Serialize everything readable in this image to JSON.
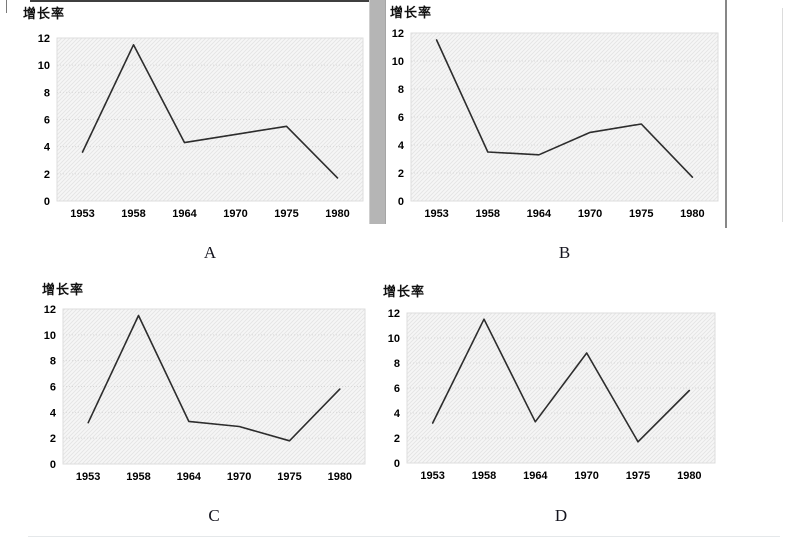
{
  "page": {
    "background": "#ffffff"
  },
  "colors": {
    "series_line": "#2d2d2d",
    "plot_fill_base": "#f6f6f6",
    "plot_hatch": "#e3e3e3",
    "plot_border": "#dedede",
    "gridline": "#d9d9d9",
    "tick_text": "#000000",
    "scrollbar_gray": "#b5b5b5"
  },
  "chart_data": [
    {
      "id": "A",
      "type": "line",
      "title": "增长率",
      "panel_label": "A",
      "categories": [
        "1953",
        "1958",
        "1964",
        "1970",
        "1975",
        "1980"
      ],
      "values": [
        3.6,
        11.5,
        4.3,
        4.9,
        5.5,
        1.7
      ],
      "yticks": [
        0,
        2,
        4,
        6,
        8,
        10,
        12
      ],
      "ylim": [
        0,
        12
      ],
      "xlabel": "",
      "ylabel": "",
      "legend": "none",
      "grid": "faint horizontal",
      "plot_fill": "diagonal-hatch"
    },
    {
      "id": "B",
      "type": "line",
      "title": "增长率",
      "panel_label": "B",
      "categories": [
        "1953",
        "1958",
        "1964",
        "1970",
        "1975",
        "1980"
      ],
      "values": [
        11.5,
        3.5,
        3.3,
        4.9,
        5.5,
        1.7
      ],
      "yticks": [
        0,
        2,
        4,
        6,
        8,
        10,
        12
      ],
      "ylim": [
        0,
        12
      ],
      "xlabel": "",
      "ylabel": "",
      "legend": "none",
      "grid": "faint horizontal",
      "plot_fill": "diagonal-hatch"
    },
    {
      "id": "C",
      "type": "line",
      "title": "增长率",
      "panel_label": "C",
      "categories": [
        "1953",
        "1958",
        "1964",
        "1970",
        "1975",
        "1980"
      ],
      "values": [
        3.2,
        11.5,
        3.3,
        2.9,
        1.8,
        5.8
      ],
      "yticks": [
        0,
        2,
        4,
        6,
        8,
        10,
        12
      ],
      "ylim": [
        0,
        12
      ],
      "xlabel": "",
      "ylabel": "",
      "legend": "none",
      "grid": "faint horizontal",
      "plot_fill": "diagonal-hatch"
    },
    {
      "id": "D",
      "type": "line",
      "title": "增长率",
      "panel_label": "D",
      "categories": [
        "1953",
        "1958",
        "1964",
        "1970",
        "1975",
        "1980"
      ],
      "values": [
        3.2,
        11.5,
        3.3,
        8.8,
        1.7,
        5.8
      ],
      "yticks": [
        0,
        2,
        4,
        6,
        8,
        10,
        12
      ],
      "ylim": [
        0,
        12
      ],
      "xlabel": "",
      "ylabel": "",
      "legend": "none",
      "grid": "faint horizontal",
      "plot_fill": "diagonal-hatch"
    }
  ]
}
